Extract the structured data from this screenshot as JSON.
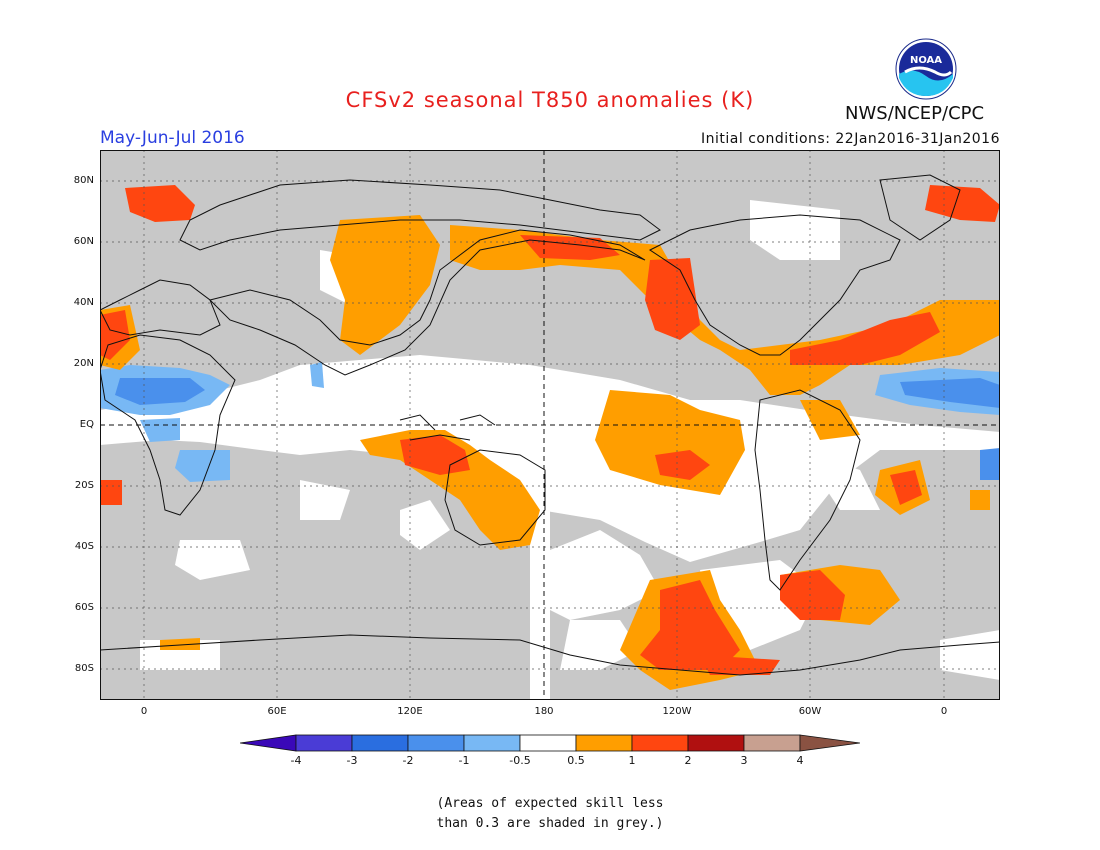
{
  "header": {
    "title": "CFSv2 seasonal T850 anomalies (K)",
    "season": "May-Jun-Jul 2016",
    "initial_conditions": "Initial conditions: 22Jan2016-31Jan2016",
    "agency": "NWS/NCEP/CPC",
    "logo_text": "NOAA"
  },
  "map": {
    "lat_labels": [
      "80N",
      "60N",
      "40N",
      "20N",
      "EQ",
      "20S",
      "40S",
      "60S",
      "80S"
    ],
    "lon_labels": [
      "0",
      "60E",
      "120E",
      "180",
      "120W",
      "60W",
      "0"
    ]
  },
  "colorbar": {
    "labels": [
      "-4",
      "-3",
      "-2",
      "-1",
      "-0.5",
      "0.5",
      "1",
      "2",
      "3",
      "4"
    ],
    "colors": [
      "#3a08b8",
      "#4a3cd6",
      "#2a6ee0",
      "#4a90ec",
      "#78b8f4",
      "#ffffff",
      "#ff9e00",
      "#ff4610",
      "#b01010",
      "#c8a090",
      "#8a5242"
    ]
  },
  "colors": {
    "grey_mask": "#c8c8c8",
    "title": "#e8201e",
    "season": "#2a3fe0"
  },
  "footnote": {
    "line1": "(Areas of expected skill less",
    "line2": "than 0.3 are shaded in grey.)"
  }
}
